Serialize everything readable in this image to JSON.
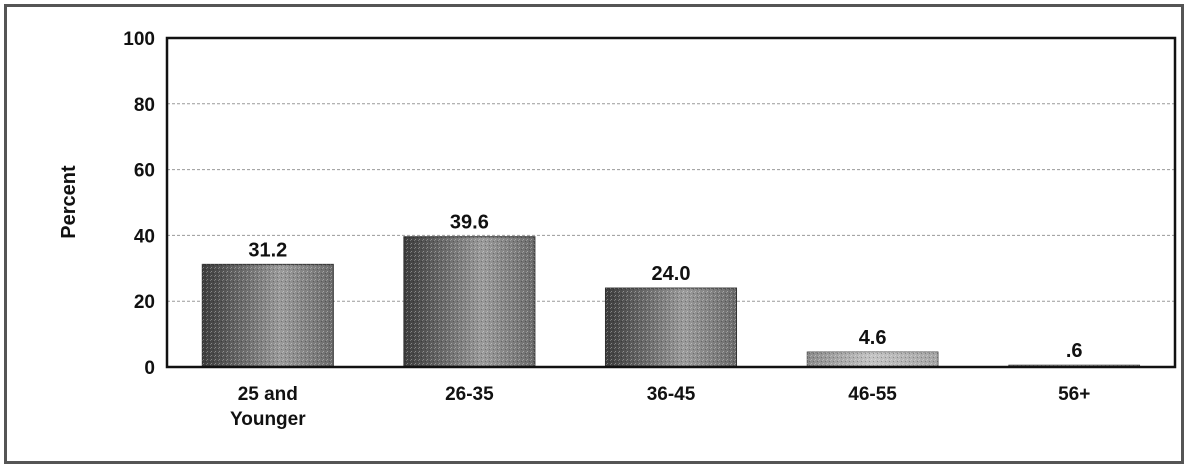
{
  "chart_data": {
    "type": "bar",
    "title": "",
    "xlabel": "",
    "ylabel": "Percent",
    "categories": [
      [
        "25 and",
        "Younger"
      ],
      [
        "26-35"
      ],
      [
        "36-45"
      ],
      [
        "46-55"
      ],
      [
        "56+"
      ]
    ],
    "values": [
      31.2,
      39.6,
      24.0,
      4.6,
      0.6
    ],
    "value_labels": [
      "31.2",
      "39.6",
      "24.0",
      "4.6",
      ".6"
    ],
    "yticks": [
      "0",
      "20",
      "40",
      "60",
      "80",
      "100"
    ],
    "ytick_values": [
      0,
      20,
      40,
      60,
      80,
      100
    ],
    "ylim": [
      0,
      100
    ],
    "grid": true,
    "legend": "none",
    "colors": {
      "bar_dark": "#4a4a4a",
      "bar_light": "#b8b8b8",
      "bar_faint": "#d8d8d8",
      "grid": "#9a9a9a",
      "axis": "#111111"
    }
  }
}
